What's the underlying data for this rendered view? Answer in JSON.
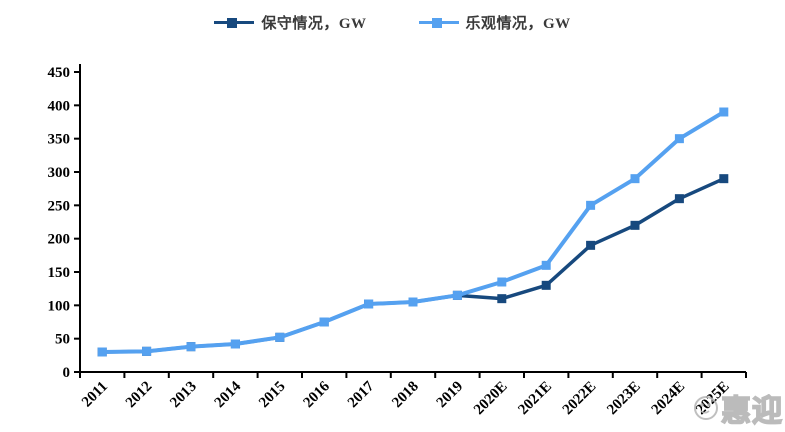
{
  "legend": [
    {
      "label": "保守情况，GW",
      "color": "#17497E"
    },
    {
      "label": "乐观情况，GW",
      "color": "#55A1F0"
    }
  ],
  "chart_data": {
    "type": "line",
    "title": "",
    "xlabel": "",
    "ylabel": "",
    "categories": [
      "2011",
      "2012",
      "2013",
      "2014",
      "2015",
      "2016",
      "2017",
      "2018",
      "2019",
      "2020E",
      "2021E",
      "2022E",
      "2023E",
      "2024E",
      "2025E"
    ],
    "series": [
      {
        "id": "conservative",
        "name": "保守情况，GW",
        "color": "#17497E",
        "width": 3.5,
        "values": [
          30,
          31,
          38,
          42,
          52,
          75,
          102,
          105,
          115,
          110,
          130,
          190,
          220,
          260,
          290
        ]
      },
      {
        "id": "optimistic",
        "name": "乐观情况，GW",
        "color": "#55A1F0",
        "width": 4,
        "values": [
          30,
          31,
          38,
          42,
          52,
          75,
          102,
          105,
          115,
          135,
          160,
          250,
          290,
          350,
          390
        ]
      }
    ],
    "ylim": [
      0,
      450
    ],
    "ytick_step": 50,
    "yticks": [
      0,
      50,
      100,
      150,
      200,
      250,
      300,
      350,
      400,
      450
    ],
    "grid": false,
    "legend_position": "top",
    "marker": "square"
  },
  "watermark": {
    "text": "惠迎"
  }
}
